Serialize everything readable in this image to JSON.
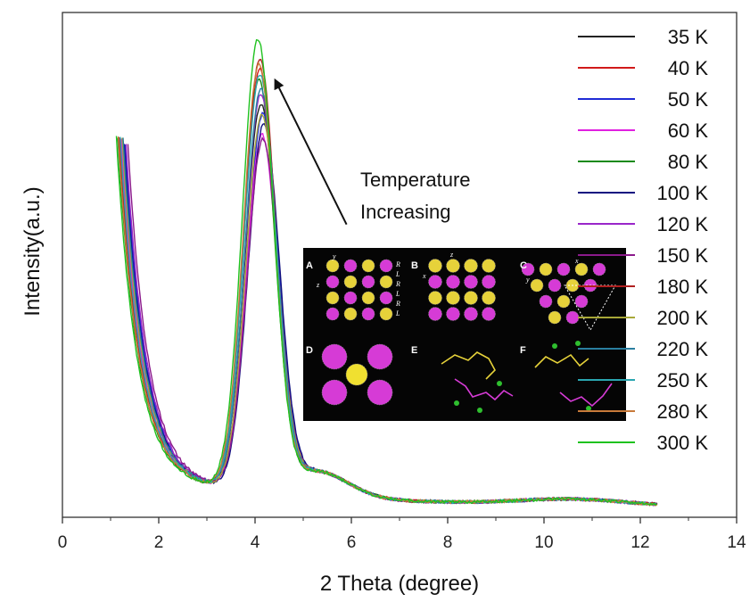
{
  "chart_data": {
    "type": "line",
    "xlabel": "2 Theta (degree)",
    "ylabel": "Intensity(a.u.)",
    "xlim": [
      0,
      14
    ],
    "ylim": [
      0,
      1
    ],
    "xticks": [
      0,
      2,
      4,
      6,
      8,
      10,
      12,
      14
    ],
    "yticks_shown": false,
    "series": [
      {
        "name": "35 K",
        "color": "#222222",
        "peak_x": 4.12,
        "peak_y": 0.78,
        "start_x": 1.25,
        "start_y": 0.73
      },
      {
        "name": "40 K",
        "color": "#d11a1a",
        "peak_x": 4.1,
        "peak_y": 0.85,
        "start_x": 1.2,
        "start_y": 0.73
      },
      {
        "name": "50 K",
        "color": "#1f2bd6",
        "peak_x": 4.16,
        "peak_y": 0.76,
        "start_x": 1.3,
        "start_y": 0.72
      },
      {
        "name": "60 K",
        "color": "#e020e0",
        "peak_x": 4.14,
        "peak_y": 0.72,
        "start_x": 1.22,
        "start_y": 0.73
      },
      {
        "name": "80 K",
        "color": "#168a16",
        "peak_x": 4.08,
        "peak_y": 0.83,
        "start_x": 1.15,
        "start_y": 0.73
      },
      {
        "name": "100 K",
        "color": "#101080",
        "peak_x": 4.18,
        "peak_y": 0.74,
        "start_x": 1.28,
        "start_y": 0.72
      },
      {
        "name": "120 K",
        "color": "#9a26c9",
        "peak_x": 4.12,
        "peak_y": 0.8,
        "start_x": 1.32,
        "start_y": 0.72
      },
      {
        "name": "150 K",
        "color": "#8b1a8b",
        "peak_x": 4.16,
        "peak_y": 0.71,
        "start_x": 1.36,
        "start_y": 0.72
      },
      {
        "name": "180 K",
        "color": "#b02020",
        "peak_x": 4.1,
        "peak_y": 0.87,
        "start_x": 1.18,
        "start_y": 0.73
      },
      {
        "name": "200 K",
        "color": "#a8a838",
        "peak_x": 4.14,
        "peak_y": 0.76,
        "start_x": 1.24,
        "start_y": 0.73
      },
      {
        "name": "220 K",
        "color": "#2a7fa0",
        "peak_x": 4.12,
        "peak_y": 0.81,
        "start_x": 1.26,
        "start_y": 0.73
      },
      {
        "name": "250 K",
        "color": "#2aa6b0",
        "peak_x": 4.1,
        "peak_y": 0.84,
        "start_x": 1.2,
        "start_y": 0.73
      },
      {
        "name": "280 K",
        "color": "#c87a3a",
        "peak_x": 4.08,
        "peak_y": 0.86,
        "start_x": 1.16,
        "start_y": 0.73
      },
      {
        "name": "300 K",
        "color": "#1fc21f",
        "peak_x": 4.06,
        "peak_y": 0.91,
        "start_x": 1.12,
        "start_y": 0.73
      }
    ],
    "annotations": [
      {
        "text_line1": "Temperature",
        "text_line2": "Increasing",
        "arrow_from": [
          5.9,
          0.58
        ],
        "arrow_to": [
          4.45,
          0.86
        ]
      }
    ],
    "inset": {
      "panel_labels": [
        "A",
        "B",
        "C",
        "D",
        "E",
        "F"
      ],
      "axis_letters": [
        "y",
        "z",
        "x",
        "z",
        "x",
        "y"
      ],
      "chirality_labels": [
        "R",
        "L",
        "R",
        "L",
        "R",
        "L"
      ]
    }
  }
}
